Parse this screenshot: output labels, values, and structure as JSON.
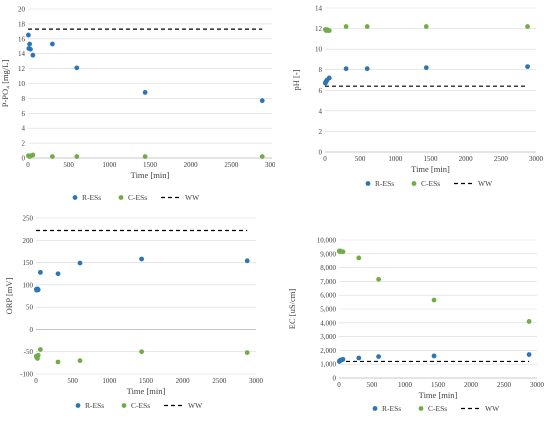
{
  "colors": {
    "r_es": "#2e75b6",
    "c_es": "#70ad47",
    "ww": "#000000",
    "grid": "#d9d9d9",
    "axis": "#bfbfbf"
  },
  "legend": {
    "r": "R-ESs",
    "c": "C-ESs",
    "ww": "WW"
  },
  "chart_data": [
    {
      "type": "scatter",
      "title": "",
      "xlabel": "Time [min]",
      "ylabel": "P-PO₄ [mg/L]",
      "xlim": [
        0,
        3000
      ],
      "ylim": [
        0,
        20
      ],
      "xticks": [
        0,
        500,
        1000,
        1500,
        2000,
        2500,
        3000
      ],
      "yticks": [
        0,
        2,
        4,
        6,
        8,
        10,
        12,
        14,
        16,
        18,
        20
      ],
      "yticklabels": [
        "0",
        "2",
        "4",
        "6",
        "8",
        "10",
        "12",
        "14",
        "16",
        "18",
        "20"
      ],
      "grid": true,
      "legend_position": "bottom",
      "series": [
        {
          "name": "R-ESs",
          "x": [
            5,
            10,
            20,
            30,
            60,
            300,
            600,
            1440,
            2880
          ],
          "y": [
            16.5,
            14.7,
            15.3,
            14.6,
            13.8,
            15.3,
            12.1,
            8.8,
            7.7
          ]
        },
        {
          "name": "C-ESs",
          "x": [
            5,
            10,
            20,
            30,
            60,
            300,
            600,
            1440,
            2880
          ],
          "y": [
            0.3,
            0.3,
            0.2,
            0.3,
            0.4,
            0.2,
            0.2,
            0.2,
            0.2
          ]
        },
        {
          "name": "WW",
          "hline": 17.3
        }
      ]
    },
    {
      "type": "scatter",
      "title": "",
      "xlabel": "Time [min]",
      "ylabel": "pH [-]",
      "xlim": [
        0,
        3000
      ],
      "ylim": [
        0,
        14
      ],
      "xticks": [
        0,
        500,
        1000,
        1500,
        2000,
        2500,
        3000
      ],
      "yticks": [
        0,
        2,
        4,
        6,
        8,
        10,
        12,
        14
      ],
      "yticklabels": [
        "0",
        "2",
        "4",
        "6",
        "8",
        "10",
        "12",
        "14"
      ],
      "grid": true,
      "legend_position": "bottom",
      "series": [
        {
          "name": "R-ESs",
          "x": [
            5,
            10,
            20,
            30,
            60,
            300,
            600,
            1440,
            2880
          ],
          "y": [
            6.7,
            6.8,
            6.9,
            7.0,
            7.2,
            8.1,
            8.1,
            8.2,
            8.3
          ]
        },
        {
          "name": "C-ESs",
          "x": [
            5,
            10,
            20,
            30,
            60,
            300,
            600,
            1440,
            2880
          ],
          "y": [
            11.9,
            11.9,
            11.8,
            11.9,
            11.8,
            12.2,
            12.2,
            12.2,
            12.2
          ]
        },
        {
          "name": "WW",
          "hline": 6.4
        }
      ]
    },
    {
      "type": "scatter",
      "title": "",
      "xlabel": "Time [min]",
      "ylabel": "ORP [mV]",
      "xlim": [
        0,
        3000
      ],
      "ylim": [
        -100,
        250
      ],
      "xticks": [
        0,
        500,
        1000,
        1500,
        2000,
        2500,
        3000
      ],
      "yticks": [
        -100,
        -50,
        0,
        50,
        100,
        150,
        200,
        250
      ],
      "yticklabels": [
        "-100",
        "-50",
        "0",
        "50",
        "100",
        "150",
        "200",
        "250"
      ],
      "grid": true,
      "legend_position": "bottom",
      "series": [
        {
          "name": "R-ESs",
          "x": [
            5,
            10,
            20,
            30,
            60,
            300,
            600,
            1440,
            2880
          ],
          "y": [
            90,
            88,
            91,
            89,
            128,
            125,
            149,
            158,
            154
          ]
        },
        {
          "name": "C-ESs",
          "x": [
            5,
            10,
            20,
            30,
            60,
            300,
            600,
            1440,
            2880
          ],
          "y": [
            -60,
            -63,
            -65,
            -58,
            -45,
            -73,
            -70,
            -50,
            -52
          ]
        },
        {
          "name": "WW",
          "hline": 222
        }
      ]
    },
    {
      "type": "scatter",
      "title": "",
      "xlabel": "Time [min]",
      "ylabel": "EC [uS/cm]",
      "xlim": [
        0,
        3000
      ],
      "ylim": [
        0,
        10000
      ],
      "xticks": [
        0,
        500,
        1000,
        1500,
        2000,
        2500,
        3000
      ],
      "yticks": [
        0,
        1000,
        2000,
        3000,
        4000,
        5000,
        6000,
        7000,
        8000,
        9000,
        10000
      ],
      "yticklabels": [
        "0",
        "1,000",
        "2,000",
        "3,000",
        "4,000",
        "5,000",
        "6,000",
        "7,000",
        "8,000",
        "9,000",
        "10,000"
      ],
      "grid": true,
      "legend_position": "bottom",
      "series": [
        {
          "name": "R-ESs",
          "x": [
            5,
            10,
            20,
            30,
            60,
            300,
            600,
            1440,
            2880
          ],
          "y": [
            1200,
            1250,
            1280,
            1300,
            1350,
            1450,
            1550,
            1600,
            1700
          ]
        },
        {
          "name": "C-ESs",
          "x": [
            5,
            10,
            20,
            30,
            60,
            300,
            600,
            1440,
            2880
          ],
          "y": [
            9200,
            9150,
            9200,
            9180,
            9150,
            8700,
            7150,
            5650,
            4100
          ]
        },
        {
          "name": "WW",
          "hline": 1200
        }
      ]
    }
  ]
}
